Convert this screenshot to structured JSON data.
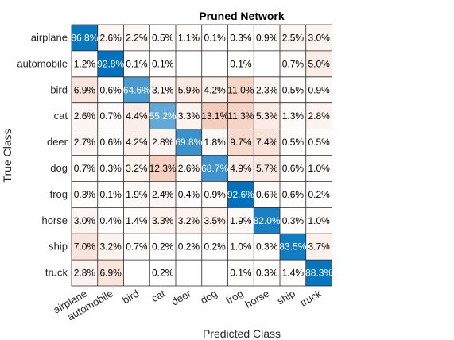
{
  "chart_data": {
    "type": "heatmap",
    "title": "Pruned Network",
    "xlabel": "Predicted Class",
    "ylabel": "True Class",
    "x_categories": [
      "airplane",
      "automobile",
      "bird",
      "cat",
      "deer",
      "dog",
      "frog",
      "horse",
      "ship",
      "truck"
    ],
    "y_categories": [
      "airplane",
      "automobile",
      "bird",
      "cat",
      "deer",
      "dog",
      "frog",
      "horse",
      "ship",
      "truck"
    ],
    "value_unit": "%",
    "values": [
      [
        86.8,
        2.6,
        2.2,
        0.5,
        1.1,
        0.1,
        0.3,
        0.9,
        2.5,
        3.0
      ],
      [
        1.2,
        92.8,
        0.1,
        0.1,
        null,
        null,
        0.1,
        null,
        0.7,
        5.0
      ],
      [
        6.9,
        0.6,
        64.6,
        3.1,
        5.9,
        4.2,
        11.0,
        2.3,
        0.5,
        0.9
      ],
      [
        2.6,
        0.7,
        4.4,
        55.2,
        3.3,
        13.1,
        11.3,
        5.3,
        1.3,
        2.8
      ],
      [
        2.7,
        0.6,
        4.2,
        2.8,
        69.8,
        1.8,
        9.7,
        7.4,
        0.5,
        0.5
      ],
      [
        0.7,
        0.3,
        3.2,
        12.3,
        2.6,
        68.7,
        4.9,
        5.7,
        0.6,
        1.0
      ],
      [
        0.3,
        0.1,
        1.9,
        2.4,
        0.4,
        0.9,
        92.6,
        0.6,
        0.6,
        0.2
      ],
      [
        3.0,
        0.4,
        1.4,
        3.3,
        3.2,
        3.5,
        1.9,
        82.0,
        0.3,
        1.0
      ],
      [
        7.0,
        3.2,
        0.7,
        0.2,
        0.2,
        0.2,
        1.0,
        0.3,
        83.5,
        3.7
      ],
      [
        2.8,
        6.9,
        null,
        0.2,
        null,
        null,
        0.1,
        0.3,
        1.4,
        88.3
      ]
    ],
    "labels": [
      [
        "86.8%",
        "2.6%",
        "2.2%",
        "0.5%",
        "1.1%",
        "0.1%",
        "0.3%",
        "0.9%",
        "2.5%",
        "3.0%"
      ],
      [
        "1.2%",
        "92.8%",
        "0.1%",
        "0.1%",
        "",
        "",
        "0.1%",
        "",
        "0.7%",
        "5.0%"
      ],
      [
        "6.9%",
        "0.6%",
        "64.6%",
        "3.1%",
        "5.9%",
        "4.2%",
        "11.0%",
        "2.3%",
        "0.5%",
        "0.9%"
      ],
      [
        "2.6%",
        "0.7%",
        "4.4%",
        "55.2%",
        "3.3%",
        "13.1%",
        "11.3%",
        "5.3%",
        "1.3%",
        "2.8%"
      ],
      [
        "2.7%",
        "0.6%",
        "4.2%",
        "2.8%",
        "69.8%",
        "1.8%",
        "9.7%",
        "7.4%",
        "0.5%",
        "0.5%"
      ],
      [
        "0.7%",
        "0.3%",
        "3.2%",
        "12.3%",
        "2.6%",
        "68.7%",
        "4.9%",
        "5.7%",
        "0.6%",
        "1.0%"
      ],
      [
        "0.3%",
        "0.1%",
        "1.9%",
        "2.4%",
        "0.4%",
        "0.9%",
        "92.6%",
        "0.6%",
        "0.6%",
        "0.2%"
      ],
      [
        "3.0%",
        "0.4%",
        "1.4%",
        "3.3%",
        "3.2%",
        "3.5%",
        "1.9%",
        "82.0%",
        "0.3%",
        "1.0%"
      ],
      [
        "7.0%",
        "3.2%",
        "0.7%",
        "0.2%",
        "0.2%",
        "0.2%",
        "1.0%",
        "0.3%",
        "83.5%",
        "3.7%"
      ],
      [
        "2.8%",
        "6.9%",
        "",
        "0.2%",
        "",
        "",
        "0.1%",
        "0.3%",
        "1.4%",
        "88.3%"
      ]
    ],
    "colors": {
      "diagonal": "#0072BD",
      "off_diagonal": "#D95319",
      "background": "#FFFFFF",
      "grid": "#262626",
      "text_dark": "#000000",
      "text_light": "#FFFFFF"
    },
    "x_tick_rotation_deg": 30
  }
}
